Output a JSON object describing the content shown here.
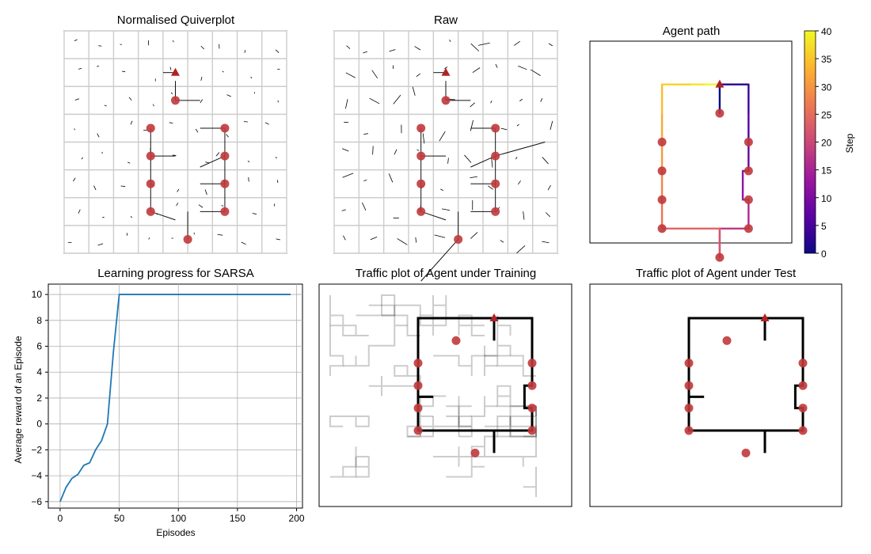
{
  "chart_data": [
    {
      "type": "quiver",
      "title": "Normalised Quiverplot",
      "start": [
        4.0,
        1.0
      ],
      "goal": [
        4.0,
        2.0
      ],
      "checkpoints": [
        [
          4.0,
          2.0
        ],
        [
          3.0,
          3.0
        ],
        [
          6.0,
          3.0
        ],
        [
          3.0,
          4.0
        ],
        [
          6.0,
          4.0
        ],
        [
          3.0,
          5.0
        ],
        [
          6.0,
          5.0
        ],
        [
          3.0,
          6.0
        ],
        [
          6.0,
          6.0
        ],
        [
          4.5,
          7.0
        ]
      ]
    },
    {
      "type": "quiver",
      "title": "Raw"
    },
    {
      "type": "line",
      "title": "Agent path",
      "colorbar": {
        "label": "Step",
        "ticks": [
          "0",
          "5",
          "10",
          "15",
          "20",
          "25",
          "30",
          "35",
          "40"
        ],
        "range": [
          0,
          40
        ]
      },
      "path": [
        [
          4,
          2
        ],
        [
          4,
          1
        ],
        [
          5,
          1
        ],
        [
          5,
          2
        ],
        [
          5,
          3
        ],
        [
          5,
          4
        ],
        [
          4.8,
          4
        ],
        [
          4.8,
          5
        ],
        [
          5,
          5
        ],
        [
          5,
          6
        ],
        [
          4,
          6
        ],
        [
          4,
          7
        ],
        [
          4,
          6
        ],
        [
          2,
          6
        ],
        [
          2,
          5
        ],
        [
          2,
          4
        ],
        [
          2,
          3
        ],
        [
          2,
          2
        ],
        [
          2,
          1
        ],
        [
          3,
          1
        ],
        [
          3.5,
          1
        ],
        [
          4,
          1
        ]
      ],
      "colormap": [
        "#0d0887",
        "#5c01a6",
        "#9c179e",
        "#cc4778",
        "#ed7953",
        "#fdb42f",
        "#f0f921"
      ]
    },
    {
      "type": "line",
      "title": "Learning progress for SARSA",
      "xlabel": "Episodes",
      "ylabel": "Average reward of an Episode",
      "xlim": [
        -10,
        205
      ],
      "ylim": [
        -6.5,
        10.8
      ],
      "xticks": [
        0,
        50,
        100,
        150,
        200
      ],
      "yticks": [
        -6,
        -4,
        -2,
        0,
        2,
        4,
        6,
        8,
        10
      ],
      "grid": true,
      "color": "#1f77b4",
      "series": [
        {
          "x": [
            0,
            5,
            10,
            15,
            20,
            25,
            30,
            35,
            40,
            45,
            50,
            55,
            60,
            100,
            150,
            195
          ],
          "y": [
            -6,
            -4.9,
            -4.2,
            -3.9,
            -3.2,
            -3.0,
            -2.0,
            -1.3,
            0.0,
            5.5,
            10,
            10,
            10,
            10,
            10,
            10
          ]
        }
      ]
    },
    {
      "type": "traffic",
      "title": "Traffic plot of Agent under Training"
    },
    {
      "type": "traffic",
      "title": "Traffic plot of Agent under Test"
    }
  ]
}
